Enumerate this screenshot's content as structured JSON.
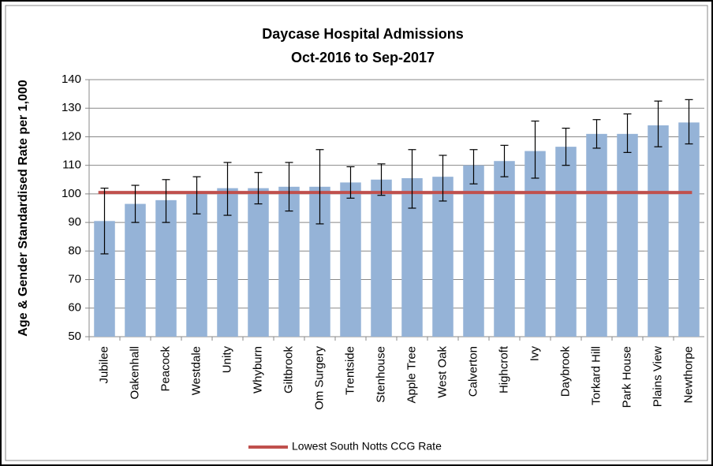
{
  "chart_data": {
    "type": "bar",
    "title": [
      "Daycase Hospital Admissions",
      "Oct-2016 to Sep-2017"
    ],
    "y_label": "Age & Gender Standardised  Rate per 1,000",
    "categories": [
      "Jubilee",
      "Oakenhall",
      "Peacock",
      "Westdale",
      "Unity",
      "Whyburn",
      "Giltbrook",
      "Om Surgery",
      "Trentside",
      "Stenhouse",
      "Apple Tree",
      "West Oak",
      "Calverton",
      "Highcroft",
      "Ivy",
      "Daybrook",
      "Torkard Hill",
      "Park House",
      "Plains View",
      "Newthorpe"
    ],
    "values": [
      90.5,
      96.5,
      97.8,
      100.5,
      102,
      102,
      102.5,
      102.5,
      104,
      105,
      105.5,
      106,
      110,
      111.5,
      115,
      116.5,
      121,
      121,
      124,
      125
    ],
    "lower": [
      79,
      90,
      90,
      93,
      92.5,
      96.5,
      94,
      89.5,
      98.5,
      99.5,
      95,
      97.5,
      103.5,
      106,
      105.5,
      110,
      116,
      114.5,
      116.5,
      117.5
    ],
    "upper": [
      102,
      103,
      105,
      106,
      111,
      107.5,
      111,
      115.5,
      109.5,
      110.5,
      115.5,
      113.5,
      115.5,
      117,
      125.5,
      123,
      126,
      128,
      132.5,
      133
    ],
    "color": "#95b3d7",
    "reference_line": {
      "name": "Lowest South Notts CCG Rate",
      "value": 100.5,
      "color": "#c0504d"
    },
    "ylim": [
      50,
      140
    ],
    "yticks": [
      50,
      60,
      70,
      80,
      90,
      100,
      110,
      120,
      130,
      140
    ],
    "grid": true
  }
}
